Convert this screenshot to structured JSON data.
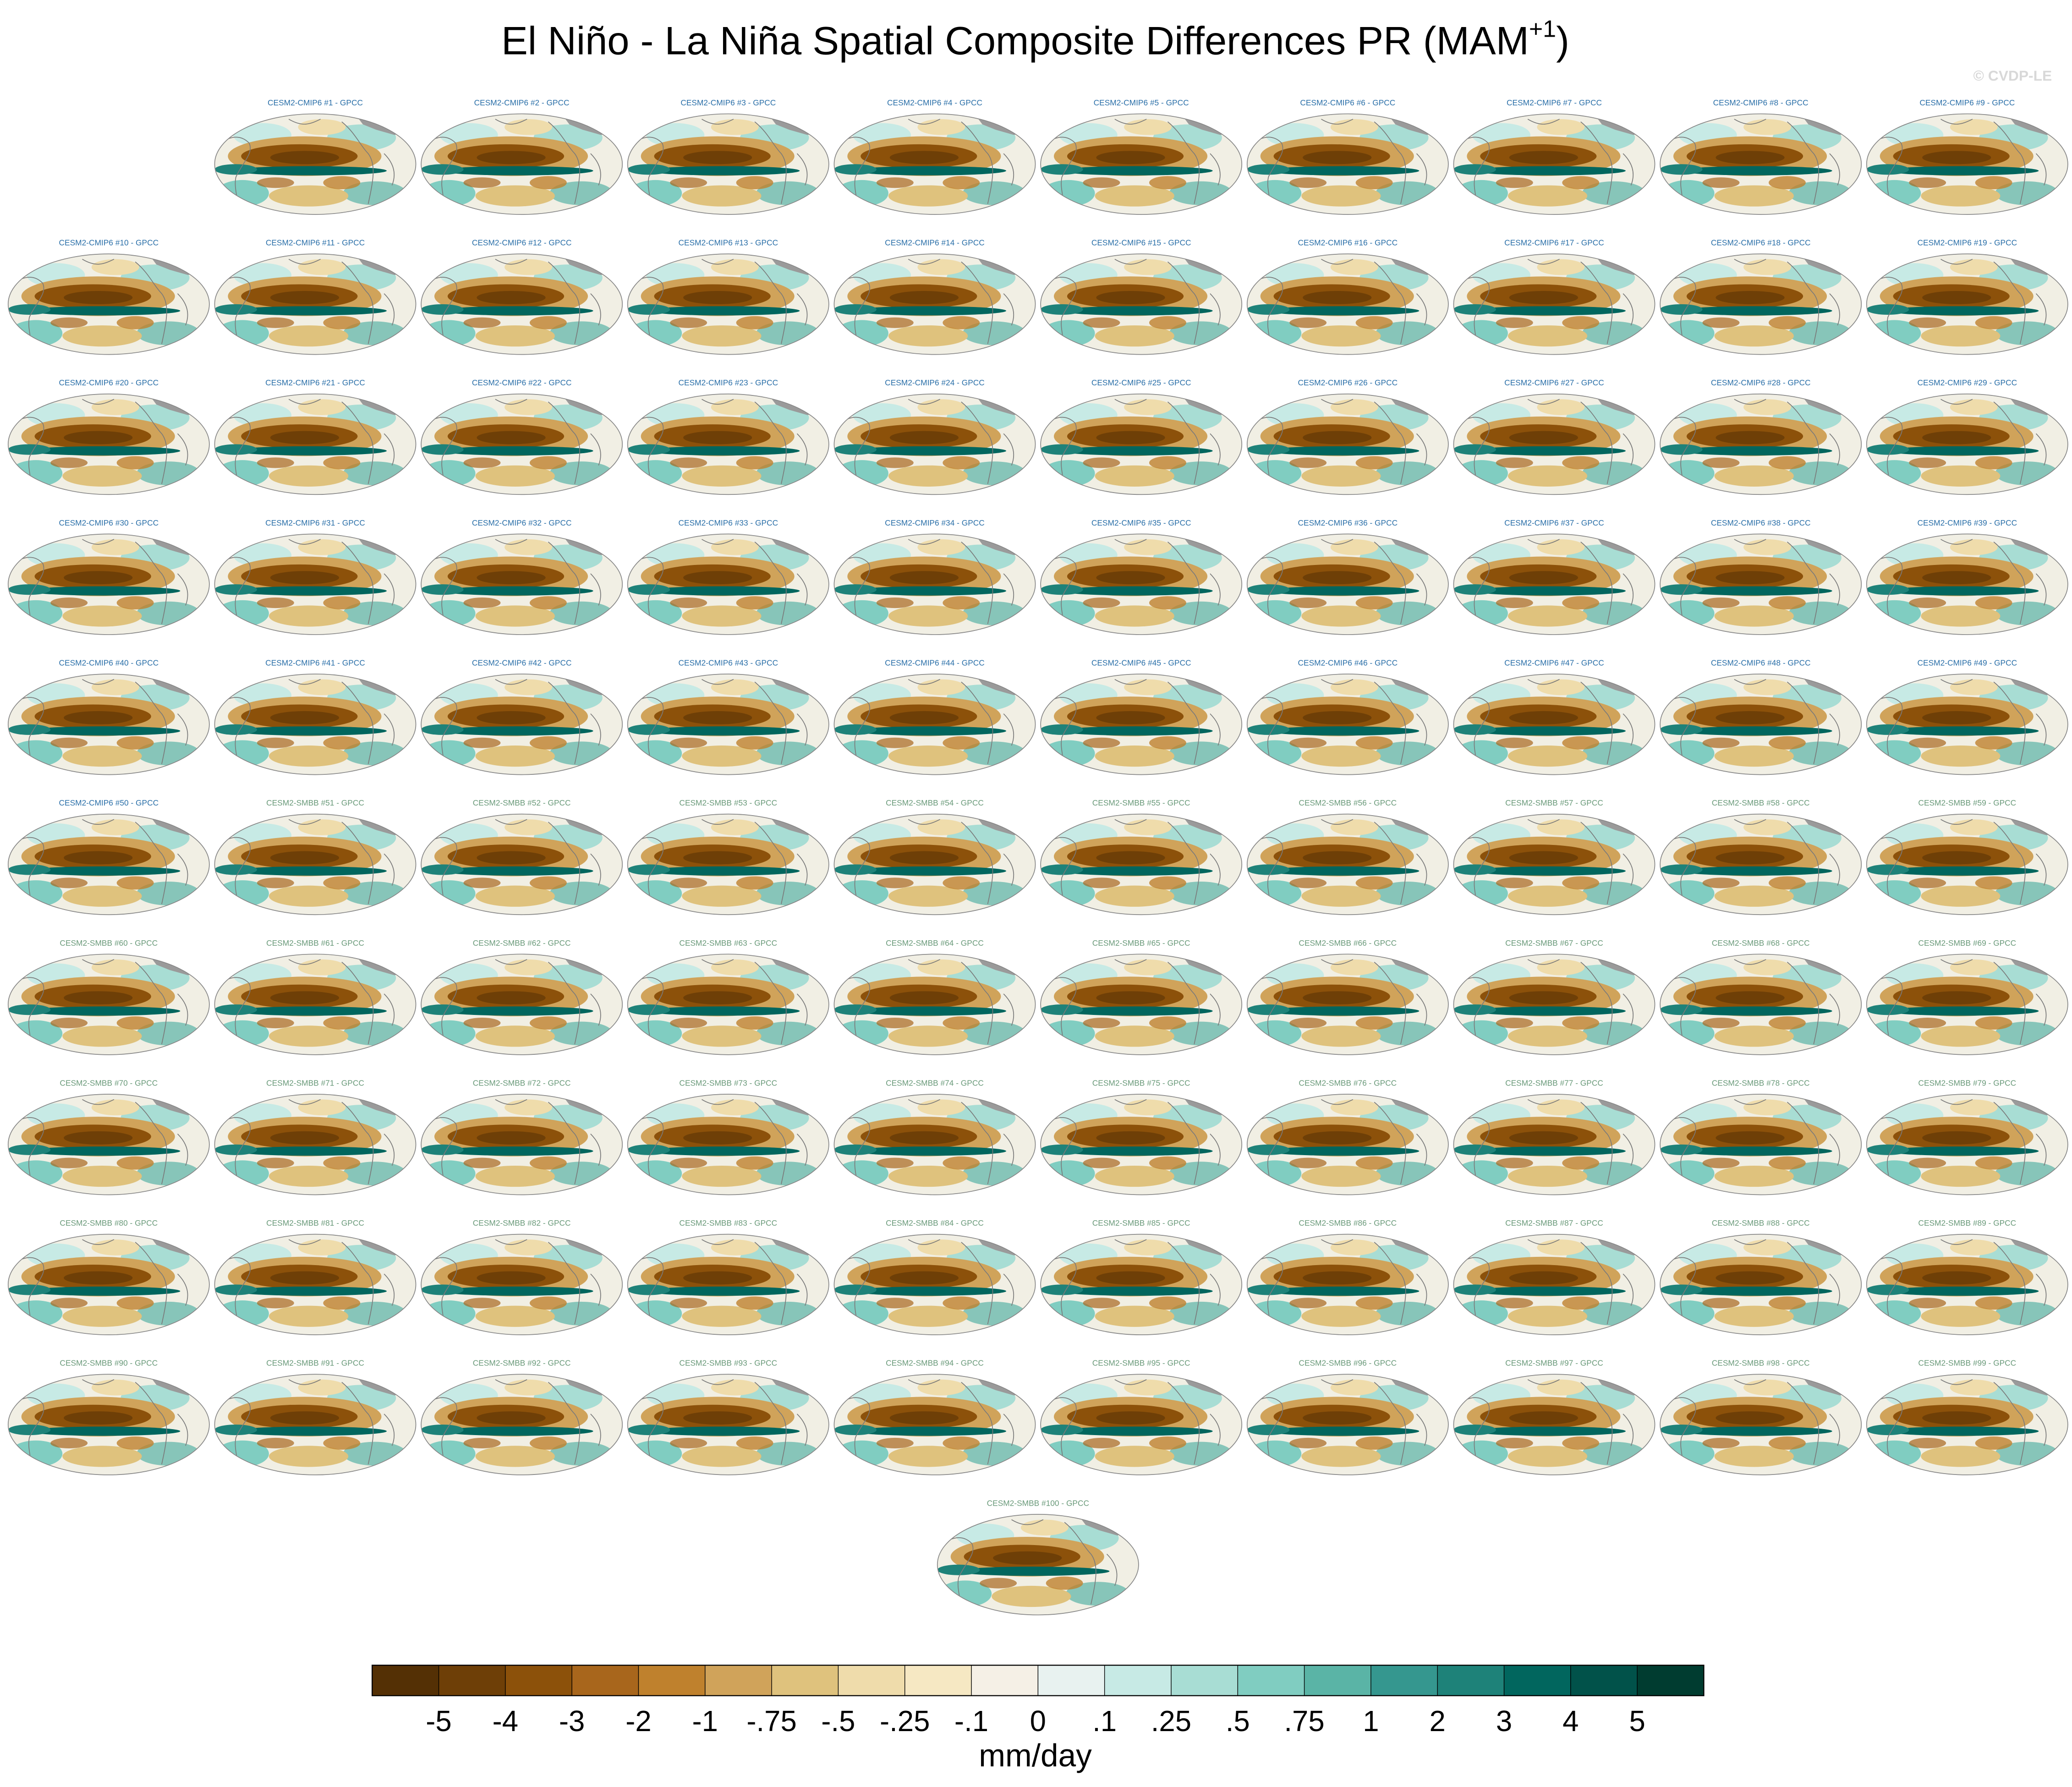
{
  "title": {
    "text": "El Niño - La Niña Spatial Composite Differences PR (MAM",
    "superscript": "+1",
    "suffix": ")"
  },
  "credit": "© CVDP-LE",
  "panel_groups": [
    {
      "color": "#2a6fa8",
      "panels": [
        "CESM2-CMIP6 #1 - GPCC",
        "CESM2-CMIP6 #2 - GPCC",
        "CESM2-CMIP6 #3 - GPCC",
        "CESM2-CMIP6 #4 - GPCC",
        "CESM2-CMIP6 #5 - GPCC",
        "CESM2-CMIP6 #6 - GPCC",
        "CESM2-CMIP6 #7 - GPCC",
        "CESM2-CMIP6 #8 - GPCC",
        "CESM2-CMIP6 #9 - GPCC",
        "CESM2-CMIP6 #10 - GPCC",
        "CESM2-CMIP6 #11 - GPCC",
        "CESM2-CMIP6 #12 - GPCC",
        "CESM2-CMIP6 #13 - GPCC",
        "CESM2-CMIP6 #14 - GPCC",
        "CESM2-CMIP6 #15 - GPCC",
        "CESM2-CMIP6 #16 - GPCC",
        "CESM2-CMIP6 #17 - GPCC",
        "CESM2-CMIP6 #18 - GPCC",
        "CESM2-CMIP6 #19 - GPCC",
        "CESM2-CMIP6 #20 - GPCC",
        "CESM2-CMIP6 #21 - GPCC",
        "CESM2-CMIP6 #22 - GPCC",
        "CESM2-CMIP6 #23 - GPCC",
        "CESM2-CMIP6 #24 - GPCC",
        "CESM2-CMIP6 #25 - GPCC",
        "CESM2-CMIP6 #26 - GPCC",
        "CESM2-CMIP6 #27 - GPCC",
        "CESM2-CMIP6 #28 - GPCC",
        "CESM2-CMIP6 #29 - GPCC",
        "CESM2-CMIP6 #30 - GPCC",
        "CESM2-CMIP6 #31 - GPCC",
        "CESM2-CMIP6 #32 - GPCC",
        "CESM2-CMIP6 #33 - GPCC",
        "CESM2-CMIP6 #34 - GPCC",
        "CESM2-CMIP6 #35 - GPCC",
        "CESM2-CMIP6 #36 - GPCC",
        "CESM2-CMIP6 #37 - GPCC",
        "CESM2-CMIP6 #38 - GPCC",
        "CESM2-CMIP6 #39 - GPCC",
        "CESM2-CMIP6 #40 - GPCC",
        "CESM2-CMIP6 #41 - GPCC",
        "CESM2-CMIP6 #42 - GPCC",
        "CESM2-CMIP6 #43 - GPCC",
        "CESM2-CMIP6 #44 - GPCC",
        "CESM2-CMIP6 #45 - GPCC",
        "CESM2-CMIP6 #46 - GPCC",
        "CESM2-CMIP6 #47 - GPCC",
        "CESM2-CMIP6 #48 - GPCC",
        "CESM2-CMIP6 #49 - GPCC",
        "CESM2-CMIP6 #50 - GPCC"
      ]
    },
    {
      "color": "#6a9a7a",
      "panels": [
        "CESM2-SMBB #51 - GPCC",
        "CESM2-SMBB #52 - GPCC",
        "CESM2-SMBB #53 - GPCC",
        "CESM2-SMBB #54 - GPCC",
        "CESM2-SMBB #55 - GPCC",
        "CESM2-SMBB #56 - GPCC",
        "CESM2-SMBB #57 - GPCC",
        "CESM2-SMBB #58 - GPCC",
        "CESM2-SMBB #59 - GPCC",
        "CESM2-SMBB #60 - GPCC",
        "CESM2-SMBB #61 - GPCC",
        "CESM2-SMBB #62 - GPCC",
        "CESM2-SMBB #63 - GPCC",
        "CESM2-SMBB #64 - GPCC",
        "CESM2-SMBB #65 - GPCC",
        "CESM2-SMBB #66 - GPCC",
        "CESM2-SMBB #67 - GPCC",
        "CESM2-SMBB #68 - GPCC",
        "CESM2-SMBB #69 - GPCC",
        "CESM2-SMBB #70 - GPCC",
        "CESM2-SMBB #71 - GPCC",
        "CESM2-SMBB #72 - GPCC",
        "CESM2-SMBB #73 - GPCC",
        "CESM2-SMBB #74 - GPCC",
        "CESM2-SMBB #75 - GPCC",
        "CESM2-SMBB #76 - GPCC",
        "CESM2-SMBB #77 - GPCC",
        "CESM2-SMBB #78 - GPCC",
        "CESM2-SMBB #79 - GPCC",
        "CESM2-SMBB #80 - GPCC",
        "CESM2-SMBB #81 - GPCC",
        "CESM2-SMBB #82 - GPCC",
        "CESM2-SMBB #83 - GPCC",
        "CESM2-SMBB #84 - GPCC",
        "CESM2-SMBB #85 - GPCC",
        "CESM2-SMBB #86 - GPCC",
        "CESM2-SMBB #87 - GPCC",
        "CESM2-SMBB #88 - GPCC",
        "CESM2-SMBB #89 - GPCC",
        "CESM2-SMBB #90 - GPCC",
        "CESM2-SMBB #91 - GPCC",
        "CESM2-SMBB #92 - GPCC",
        "CESM2-SMBB #93 - GPCC",
        "CESM2-SMBB #94 - GPCC",
        "CESM2-SMBB #95 - GPCC",
        "CESM2-SMBB #96 - GPCC",
        "CESM2-SMBB #97 - GPCC",
        "CESM2-SMBB #98 - GPCC",
        "CESM2-SMBB #99 - GPCC",
        "CESM2-SMBB #100 - GPCC"
      ]
    }
  ],
  "colorbar": {
    "colors": [
      "#543005",
      "#6e3f07",
      "#8c510a",
      "#a8661c",
      "#bf812d",
      "#d0a35a",
      "#dfc27d",
      "#efdcab",
      "#f6e8c3",
      "#f5f0e6",
      "#e8f2f0",
      "#c7eae5",
      "#a8ddd4",
      "#80cdc1",
      "#5ab4a6",
      "#35978f",
      "#1e8279",
      "#01665e",
      "#01524a",
      "#003c30"
    ],
    "ticks": [
      -5,
      -4,
      -3,
      -2,
      -1,
      {
        "value": -0.75,
        "label": "-.75"
      },
      {
        "value": -0.5,
        "label": "-.5"
      },
      {
        "value": -0.25,
        "label": "-.25"
      },
      {
        "value": -0.1,
        "label": "-.1"
      },
      0,
      {
        "value": 0.1,
        "label": ".1"
      },
      {
        "value": 0.25,
        "label": ".25"
      },
      {
        "value": 0.5,
        "label": ".5"
      },
      {
        "value": 0.75,
        "label": ".75"
      },
      1,
      2,
      3,
      4,
      5
    ],
    "label": "mm/day"
  }
}
